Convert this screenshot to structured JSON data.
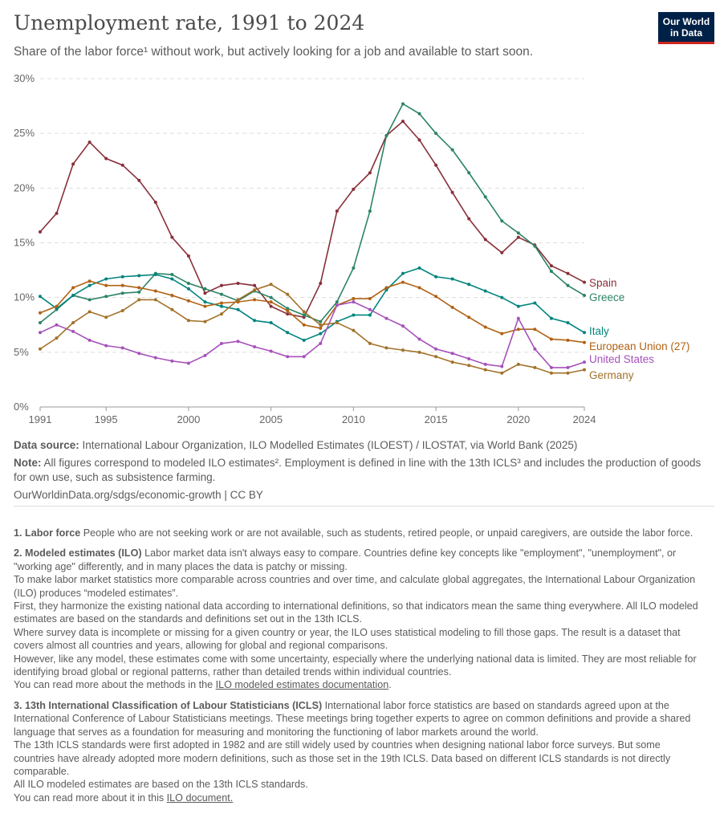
{
  "header": {
    "title": "Unemployment rate, 1991 to 2024",
    "subtitle": "Share of the labor force¹ without work, but actively looking for a job and available to start soon.",
    "logo": "Our World in Data"
  },
  "chart_data": {
    "type": "line",
    "title": "Unemployment rate, 1991 to 2024",
    "x": [
      1991,
      1992,
      1993,
      1994,
      1995,
      1996,
      1997,
      1998,
      1999,
      2000,
      2001,
      2002,
      2003,
      2004,
      2005,
      2006,
      2007,
      2008,
      2009,
      2010,
      2011,
      2012,
      2013,
      2014,
      2015,
      2016,
      2017,
      2018,
      2019,
      2020,
      2021,
      2022,
      2023,
      2024
    ],
    "xticks": [
      "1991",
      "1995",
      "2000",
      "2005",
      "2010",
      "2015",
      "2020",
      "2024"
    ],
    "yticks": [
      "0%",
      "5%",
      "10%",
      "15%",
      "20%",
      "25%",
      "30%"
    ],
    "ylim": [
      0,
      30
    ],
    "grid": "horizontal dashed",
    "legend": "line-end labels right",
    "series": [
      {
        "name": "Spain",
        "color": "#883039",
        "values": [
          16.0,
          17.7,
          22.2,
          24.2,
          22.7,
          22.1,
          20.7,
          18.7,
          15.5,
          13.8,
          10.4,
          11.1,
          11.3,
          11.1,
          9.2,
          8.5,
          8.2,
          11.3,
          17.9,
          19.9,
          21.4,
          24.8,
          26.1,
          24.4,
          22.1,
          19.6,
          17.2,
          15.3,
          14.1,
          15.5,
          14.8,
          12.9,
          12.2,
          11.4
        ]
      },
      {
        "name": "Greece",
        "color": "#2c8465",
        "values": [
          7.7,
          8.9,
          10.2,
          9.8,
          10.1,
          10.4,
          10.5,
          12.2,
          12.1,
          11.3,
          10.8,
          10.3,
          9.7,
          10.6,
          10.0,
          9.0,
          8.4,
          7.8,
          9.6,
          12.7,
          17.9,
          24.8,
          27.7,
          26.8,
          25.0,
          23.5,
          21.4,
          19.2,
          17.0,
          15.9,
          14.7,
          12.4,
          11.1,
          10.2
        ]
      },
      {
        "name": "Italy",
        "color": "#00847e",
        "values": [
          10.1,
          9.0,
          10.2,
          11.1,
          11.7,
          11.9,
          12.0,
          12.1,
          11.7,
          10.8,
          9.6,
          9.2,
          8.9,
          7.9,
          7.7,
          6.8,
          6.1,
          6.7,
          7.8,
          8.4,
          8.4,
          10.7,
          12.2,
          12.7,
          11.9,
          11.7,
          11.2,
          10.6,
          10.0,
          9.2,
          9.5,
          8.1,
          7.7,
          6.8
        ]
      },
      {
        "name": "European Union (27)",
        "color": "#b16214",
        "values": [
          8.6,
          9.2,
          10.9,
          11.5,
          11.1,
          11.1,
          10.9,
          10.6,
          10.2,
          9.7,
          9.2,
          9.5,
          9.6,
          9.8,
          9.6,
          8.8,
          7.5,
          7.2,
          9.3,
          9.9,
          9.9,
          10.9,
          11.4,
          10.9,
          10.1,
          9.1,
          8.2,
          7.3,
          6.7,
          7.1,
          7.1,
          6.2,
          6.1,
          5.9
        ]
      },
      {
        "name": "United States",
        "color": "#a652ba",
        "values": [
          6.8,
          7.5,
          6.9,
          6.1,
          5.6,
          5.4,
          4.9,
          4.5,
          4.2,
          4.0,
          4.7,
          5.8,
          6.0,
          5.5,
          5.1,
          4.6,
          4.6,
          5.8,
          9.3,
          9.6,
          8.9,
          8.1,
          7.4,
          6.2,
          5.3,
          4.9,
          4.4,
          3.9,
          3.7,
          8.1,
          5.3,
          3.6,
          3.6,
          4.1
        ]
      },
      {
        "name": "Germany",
        "color": "#a2722a",
        "values": [
          5.3,
          6.3,
          7.7,
          8.7,
          8.2,
          8.8,
          9.8,
          9.8,
          8.9,
          7.9,
          7.8,
          8.5,
          9.8,
          10.7,
          11.2,
          10.3,
          8.7,
          7.5,
          7.7,
          7.0,
          5.8,
          5.4,
          5.2,
          5.0,
          4.6,
          4.1,
          3.8,
          3.4,
          3.1,
          3.9,
          3.6,
          3.1,
          3.1,
          3.4
        ]
      }
    ]
  },
  "sources": {
    "source_label": "Data source:",
    "source_text": "International Labour Organization, ILO Modelled Estimates (ILOEST) / ILOSTAT, via World Bank (2025)",
    "note_label": "Note:",
    "note_text": "All figures correspond to modeled ILO estimates². Employment is defined in line with the 13th ICLS³ and includes the production of goods for own use, such as subsistence farming.",
    "url": "OurWorldinData.org/sdgs/economic-growth | CC BY"
  },
  "notes": {
    "n1_label": "1. Labor force",
    "n1_text": "People who are not seeking work or are not available, such as students, retired people, or unpaid caregivers, are outside the labor force.",
    "n2_label": "2. Modeled estimates (ILO)",
    "n2_text": "Labor market data isn't always easy to compare. Countries define key concepts like \"employment\", \"unemployment\", or \"working age\" differently, and in many places the data is patchy or missing.",
    "n2_p2": "To make labor market statistics more comparable across countries and over time, and calculate global aggregates, the International Labour Organization (ILO) produces “modeled estimates”.",
    "n2_p3": "First, they harmonize the existing national data according to international definitions, so that indicators mean the same thing everywhere. All ILO modeled estimates are based on the standards and definitions set out in the 13th ICLS.",
    "n2_p4": "Where survey data is incomplete or missing for a given country or year, the ILO uses statistical modeling to fill those gaps. The result is a dataset that covers almost all countries and years, allowing for global and regional comparisons.",
    "n2_p5": "However, like any model, these estimates come with some uncertainty, especially where the underlying national data is limited. They are most reliable for identifying broad global or regional patterns, rather than detailed trends within individual countries.",
    "n2_p6": "You can read more about the methods in the",
    "n2_link": "ILO modeled estimates documentation",
    "n2_end": ".",
    "n3_label": "3. 13th International Classification of Labour Statisticians (ICLS)",
    "n3_text": "International labor force statistics are based on standards agreed upon at the International Conference of Labour Statisticians meetings. These meetings bring together experts to agree on common definitions and provide a shared language that serves as a foundation for measuring and monitoring the functioning of labor markets around the world.",
    "n3_p2": "The 13th ICLS standards were first adopted in 1982 and are still widely used by countries when designing national labor force surveys. But some countries have already adopted more modern definitions, such as those set in the 19th ICLS. Data based on different ICLS standards is not directly comparable.",
    "n3_p3": "All ILO modeled estimates are based on the 13th ICLS standards.",
    "n3_p4": "You can read more about it in this",
    "n3_link": "ILO document."
  }
}
